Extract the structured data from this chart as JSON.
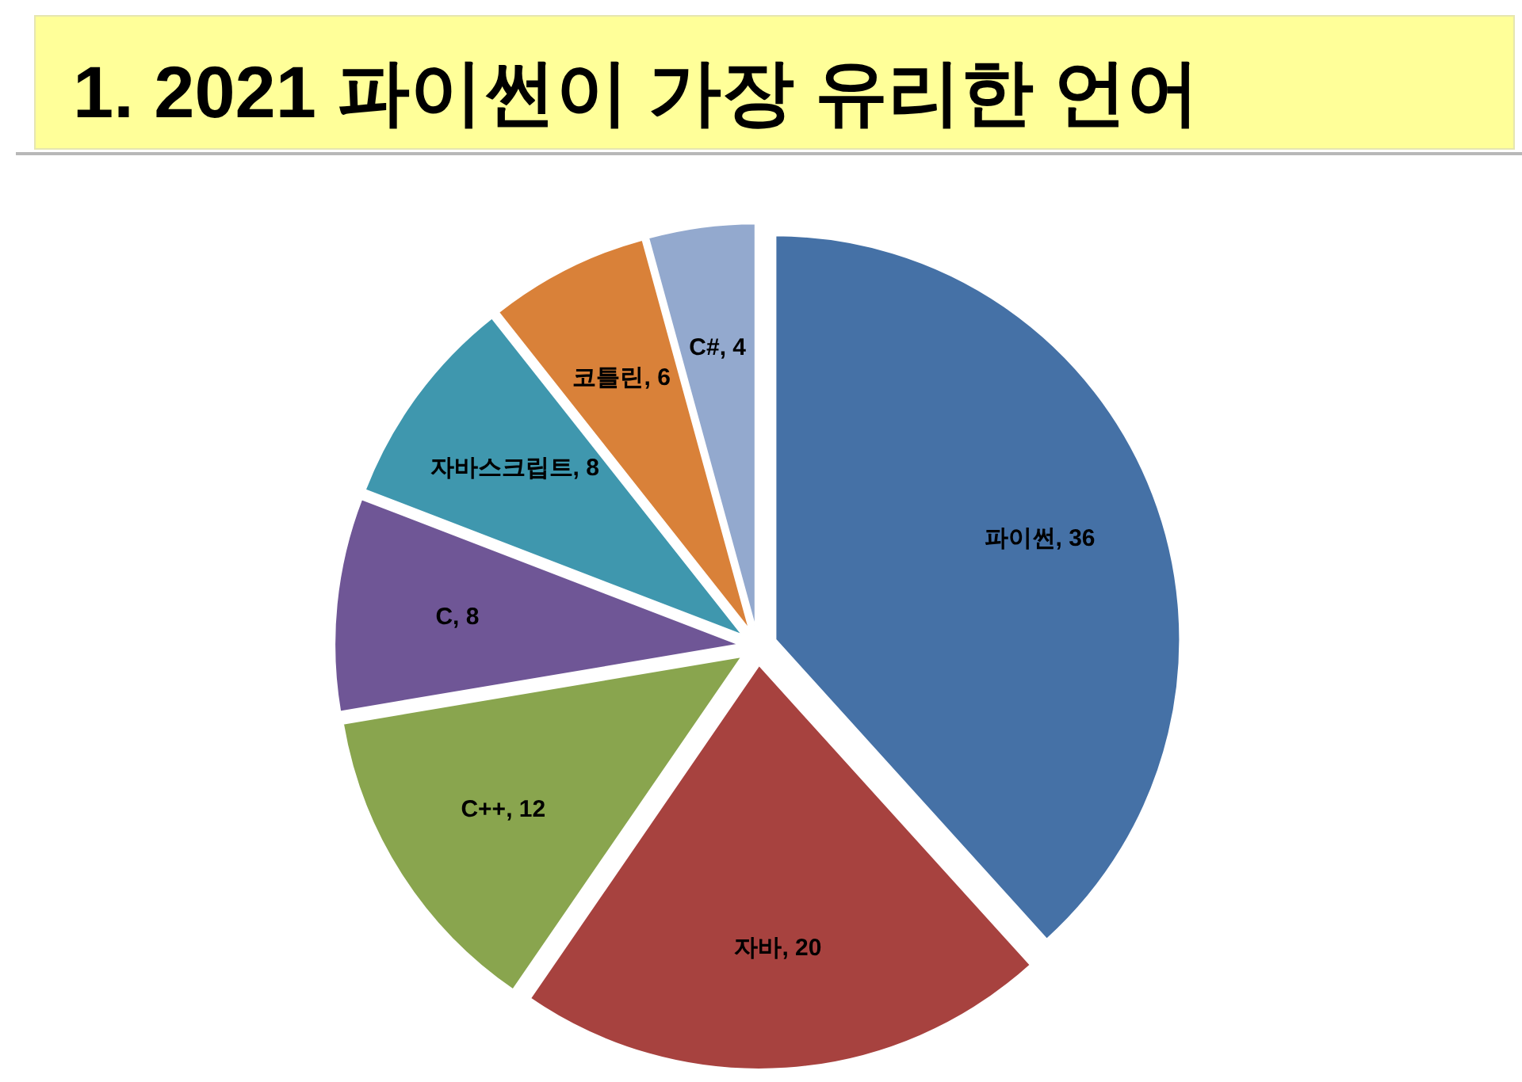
{
  "chart_data": {
    "type": "pie",
    "title": "1. 2021 파이썬이 가장 유리한 언어",
    "categories": [
      "파이썬",
      "자바",
      "C++",
      "C",
      "자바스크립트",
      "코틀린",
      "C#"
    ],
    "values": [
      36,
      20,
      12,
      8,
      8,
      6,
      4
    ],
    "colors": [
      "#4571a6",
      "#a7423f",
      "#89a54e",
      "#6f5696",
      "#3f97ae",
      "#d98139",
      "#93a9ce"
    ],
    "value_labels": [
      ", 36",
      ", 20",
      ", 12",
      ", 8",
      ", 8",
      ", 6",
      ", 4"
    ]
  }
}
